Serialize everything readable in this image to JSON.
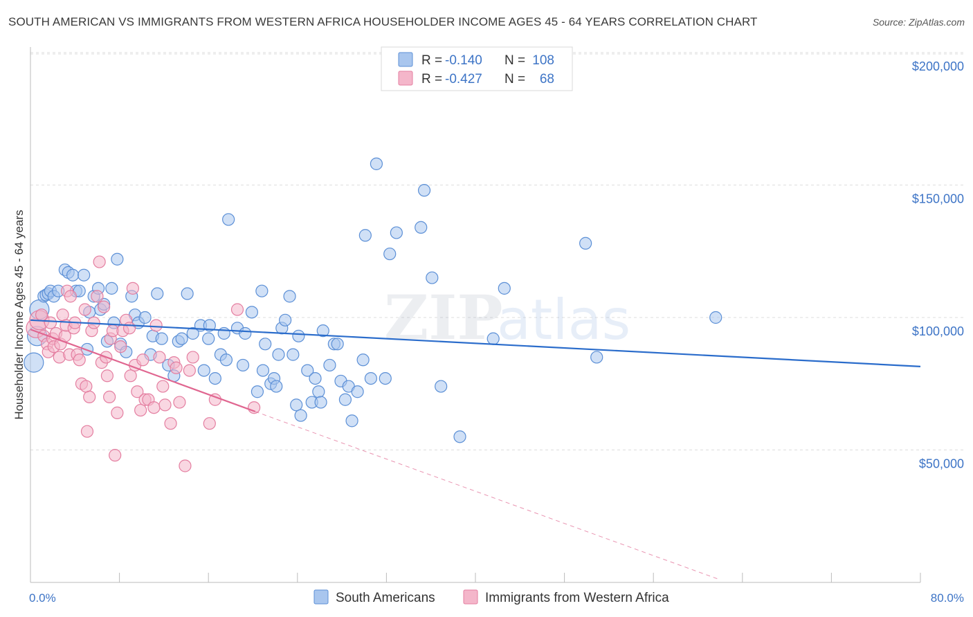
{
  "title": "SOUTH AMERICAN VS IMMIGRANTS FROM WESTERN AFRICA HOUSEHOLDER INCOME AGES 45 - 64 YEARS CORRELATION CHART",
  "source": "Source: ZipAtlas.com",
  "watermark": {
    "zip": "ZIP",
    "atlas": "atlas"
  },
  "legend": {
    "rows": [
      {
        "r_label": "R =",
        "r_value": "-0.140",
        "n_label": "N =",
        "n_value": "108"
      },
      {
        "r_label": "R =",
        "r_value": "-0.427",
        "n_label": "N =",
        "n_value": "68"
      }
    ]
  },
  "colors": {
    "blue_fill": "#a9c6ee",
    "blue_stroke": "#5b8fd6",
    "blue_line": "#2a6ccb",
    "pink_fill": "#f4b6ca",
    "pink_stroke": "#e47ea0",
    "pink_line": "#e06690",
    "tick_text": "#3d74c6",
    "grid": "#dddddd"
  },
  "chart_data": {
    "type": "scatter",
    "title": "SOUTH AMERICAN VS IMMIGRANTS FROM WESTERN AFRICA HOUSEHOLDER INCOME AGES 45 - 64 YEARS CORRELATION CHART",
    "xlabel": "",
    "ylabel": "Householder Income Ages 45 - 64 years",
    "xlim": [
      0,
      80
    ],
    "ylim": [
      0,
      210000
    ],
    "x_tick_labels": [
      "0.0%",
      "80.0%"
    ],
    "y_ticks": [
      50000,
      100000,
      150000,
      200000
    ],
    "y_tick_labels": [
      "$50,000",
      "$100,000",
      "$150,000",
      "$200,000"
    ],
    "legend_position": "bottom",
    "series": [
      {
        "name": "South Americans",
        "r": -0.14,
        "n": 108,
        "trend": {
          "x0": 0,
          "y0": 99000,
          "x1": 80,
          "y1": 81500
        },
        "points": [
          [
            0.3,
            83000
          ],
          [
            0.6,
            93000
          ],
          [
            0.8,
            103000
          ],
          [
            1.2,
            108000
          ],
          [
            1.4,
            108500
          ],
          [
            1.6,
            109000
          ],
          [
            1.8,
            110000
          ],
          [
            2.1,
            108000
          ],
          [
            2.5,
            110000
          ],
          [
            3.1,
            118000
          ],
          [
            3.4,
            117000
          ],
          [
            3.8,
            116000
          ],
          [
            4.1,
            110000
          ],
          [
            4.4,
            110000
          ],
          [
            4.8,
            116000
          ],
          [
            5.1,
            88000
          ],
          [
            5.3,
            102000
          ],
          [
            5.7,
            108000
          ],
          [
            6.1,
            111000
          ],
          [
            6.3,
            103000
          ],
          [
            6.6,
            105000
          ],
          [
            6.9,
            91000
          ],
          [
            7.3,
            111000
          ],
          [
            7.5,
            98000
          ],
          [
            7.8,
            122000
          ],
          [
            8.1,
            90000
          ],
          [
            8.6,
            87000
          ],
          [
            9.1,
            108000
          ],
          [
            9.4,
            101000
          ],
          [
            9.7,
            98000
          ],
          [
            10.3,
            100000
          ],
          [
            10.8,
            86000
          ],
          [
            11.0,
            93000
          ],
          [
            11.4,
            109000
          ],
          [
            11.8,
            92000
          ],
          [
            12.4,
            82000
          ],
          [
            12.9,
            78000
          ],
          [
            13.3,
            91000
          ],
          [
            13.6,
            92000
          ],
          [
            14.1,
            109000
          ],
          [
            14.6,
            94000
          ],
          [
            15.3,
            97000
          ],
          [
            15.6,
            80000
          ],
          [
            16.0,
            92000
          ],
          [
            16.1,
            97000
          ],
          [
            16.6,
            77000
          ],
          [
            17.1,
            86000
          ],
          [
            17.4,
            94000
          ],
          [
            17.6,
            84000
          ],
          [
            17.8,
            137000
          ],
          [
            18.6,
            96000
          ],
          [
            19.1,
            82000
          ],
          [
            19.3,
            94000
          ],
          [
            19.9,
            102000
          ],
          [
            20.4,
            72000
          ],
          [
            20.8,
            110000
          ],
          [
            20.9,
            80000
          ],
          [
            21.1,
            90000
          ],
          [
            21.6,
            75000
          ],
          [
            21.9,
            77000
          ],
          [
            22.1,
            74000
          ],
          [
            22.3,
            86000
          ],
          [
            22.6,
            96000
          ],
          [
            22.9,
            99000
          ],
          [
            23.3,
            108000
          ],
          [
            23.6,
            86000
          ],
          [
            23.9,
            67000
          ],
          [
            24.1,
            93000
          ],
          [
            24.3,
            63000
          ],
          [
            24.9,
            80000
          ],
          [
            25.3,
            68000
          ],
          [
            25.6,
            77000
          ],
          [
            25.9,
            72000
          ],
          [
            26.1,
            68000
          ],
          [
            26.3,
            95000
          ],
          [
            26.9,
            82000
          ],
          [
            27.3,
            90000
          ],
          [
            27.6,
            90000
          ],
          [
            27.9,
            76000
          ],
          [
            28.3,
            69000
          ],
          [
            28.6,
            74000
          ],
          [
            28.9,
            61000
          ],
          [
            29.4,
            72000
          ],
          [
            29.9,
            84000
          ],
          [
            30.1,
            131000
          ],
          [
            30.6,
            77000
          ],
          [
            31.1,
            158000
          ],
          [
            31.9,
            77000
          ],
          [
            32.3,
            124000
          ],
          [
            32.9,
            132000
          ],
          [
            35.1,
            134000
          ],
          [
            35.4,
            148000
          ],
          [
            36.1,
            115000
          ],
          [
            36.9,
            74000
          ],
          [
            38.6,
            55000
          ],
          [
            41.6,
            92000
          ],
          [
            42.6,
            111000
          ],
          [
            49.9,
            128000
          ],
          [
            50.9,
            85000
          ],
          [
            61.6,
            100000
          ]
        ]
      },
      {
        "name": "Immigrants from Western Africa",
        "r": -0.427,
        "n": 68,
        "trend": {
          "x0": 0,
          "y0": 95500,
          "x1": 20.2,
          "y1": 64500
        },
        "trend_dashed": {
          "x0": 20.2,
          "y0": 64500,
          "x1": 62,
          "y1": 1000
        },
        "points": [
          [
            0.5,
            96000
          ],
          [
            0.8,
            99000
          ],
          [
            1.0,
            101000
          ],
          [
            1.2,
            93000
          ],
          [
            1.5,
            90000
          ],
          [
            1.6,
            87000
          ],
          [
            1.8,
            98000
          ],
          [
            2.0,
            92000
          ],
          [
            2.1,
            89000
          ],
          [
            2.3,
            94000
          ],
          [
            2.6,
            85000
          ],
          [
            2.7,
            90000
          ],
          [
            2.9,
            101000
          ],
          [
            3.1,
            93000
          ],
          [
            3.2,
            97000
          ],
          [
            3.3,
            110000
          ],
          [
            3.5,
            86000
          ],
          [
            3.6,
            108000
          ],
          [
            3.9,
            96000
          ],
          [
            4.0,
            98000
          ],
          [
            4.2,
            86000
          ],
          [
            4.4,
            84000
          ],
          [
            4.6,
            75000
          ],
          [
            4.9,
            103000
          ],
          [
            5.0,
            74000
          ],
          [
            5.1,
            57000
          ],
          [
            5.3,
            70000
          ],
          [
            5.5,
            95000
          ],
          [
            5.7,
            98000
          ],
          [
            6.0,
            108000
          ],
          [
            6.2,
            121000
          ],
          [
            6.4,
            83000
          ],
          [
            6.6,
            104000
          ],
          [
            6.8,
            85000
          ],
          [
            6.9,
            78000
          ],
          [
            7.1,
            70000
          ],
          [
            7.2,
            92000
          ],
          [
            7.4,
            95000
          ],
          [
            7.6,
            48000
          ],
          [
            7.8,
            64000
          ],
          [
            8.1,
            89000
          ],
          [
            8.3,
            95000
          ],
          [
            8.6,
            99000
          ],
          [
            8.9,
            96000
          ],
          [
            9.0,
            78000
          ],
          [
            9.2,
            111000
          ],
          [
            9.4,
            82000
          ],
          [
            9.6,
            72000
          ],
          [
            9.9,
            65000
          ],
          [
            10.1,
            84000
          ],
          [
            10.3,
            69000
          ],
          [
            10.6,
            69000
          ],
          [
            11.1,
            66000
          ],
          [
            11.3,
            97000
          ],
          [
            11.6,
            85000
          ],
          [
            11.9,
            74000
          ],
          [
            12.1,
            67000
          ],
          [
            12.6,
            60000
          ],
          [
            12.9,
            83000
          ],
          [
            13.1,
            81000
          ],
          [
            13.4,
            68000
          ],
          [
            13.9,
            44000
          ],
          [
            14.3,
            80000
          ],
          [
            14.6,
            85000
          ],
          [
            16.1,
            60000
          ],
          [
            16.6,
            69000
          ],
          [
            18.6,
            103000
          ],
          [
            20.1,
            66000
          ]
        ]
      }
    ]
  }
}
